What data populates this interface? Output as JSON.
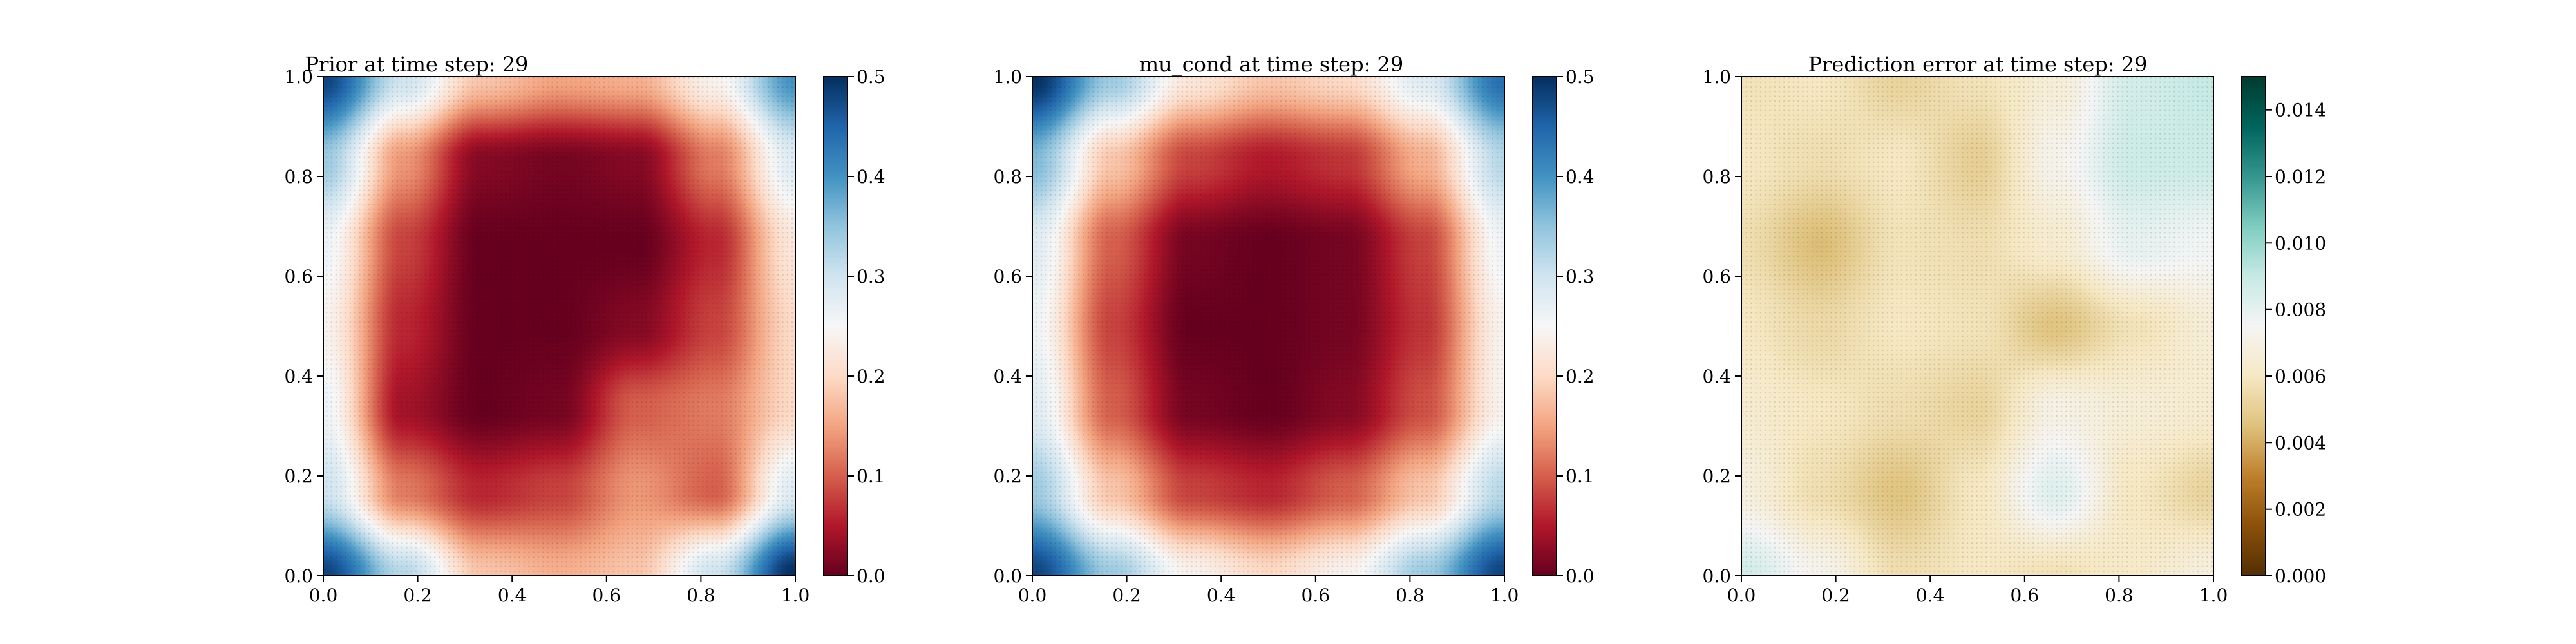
{
  "figure": {
    "background": "#ffffff"
  },
  "chart_data": [
    {
      "type": "heatmap",
      "title": "Prior at time step: 29",
      "xlabel": "",
      "ylabel": "",
      "xlim": [
        0.0,
        1.0
      ],
      "ylim": [
        0.0,
        1.0
      ],
      "xticks": [
        "0.0",
        "0.2",
        "0.4",
        "0.6",
        "0.8",
        "1.0"
      ],
      "yticks": [
        "0.0",
        "0.2",
        "0.4",
        "0.6",
        "0.8",
        "1.0"
      ],
      "colormap": "RdBu",
      "colormap_stops": [
        "#67001f",
        "#b2182b",
        "#d6604d",
        "#f4a582",
        "#fddbc7",
        "#f7f7f7",
        "#d1e5f0",
        "#92c5de",
        "#4393c3",
        "#2166ac",
        "#053061"
      ],
      "value_range": [
        0.0,
        0.5
      ],
      "colorbar_ticks": [
        "0.0",
        "0.1",
        "0.2",
        "0.3",
        "0.4",
        "0.5"
      ],
      "field": {
        "description_values": "approximate scalar field on a 7x7 grid of (x,y) from 0 to 1, row 0 = y=1.0",
        "grid": [
          [
            0.48,
            0.3,
            0.18,
            0.15,
            0.16,
            0.24,
            0.4
          ],
          [
            0.34,
            0.14,
            0.02,
            0.01,
            0.02,
            0.12,
            0.28
          ],
          [
            0.26,
            0.08,
            0.0,
            0.0,
            0.0,
            0.06,
            0.22
          ],
          [
            0.24,
            0.06,
            0.0,
            0.0,
            0.02,
            0.08,
            0.2
          ],
          [
            0.26,
            0.04,
            0.0,
            0.01,
            0.1,
            0.12,
            0.2
          ],
          [
            0.3,
            0.12,
            0.06,
            0.08,
            0.14,
            0.1,
            0.28
          ],
          [
            0.48,
            0.32,
            0.18,
            0.16,
            0.18,
            0.3,
            0.5
          ]
        ]
      }
    },
    {
      "type": "heatmap",
      "title": "mu_cond at time step: 29",
      "xlabel": "",
      "ylabel": "",
      "xlim": [
        0.0,
        1.0
      ],
      "ylim": [
        0.0,
        1.0
      ],
      "xticks": [
        "0.0",
        "0.2",
        "0.4",
        "0.6",
        "0.8",
        "1.0"
      ],
      "yticks": [
        "0.0",
        "0.2",
        "0.4",
        "0.6",
        "0.8",
        "1.0"
      ],
      "colormap": "RdBu",
      "colormap_stops": [
        "#67001f",
        "#b2182b",
        "#d6604d",
        "#f4a582",
        "#fddbc7",
        "#f7f7f7",
        "#d1e5f0",
        "#92c5de",
        "#4393c3",
        "#2166ac",
        "#053061"
      ],
      "value_range": [
        0.0,
        0.5
      ],
      "colorbar_ticks": [
        "0.0",
        "0.1",
        "0.2",
        "0.3",
        "0.4",
        "0.5"
      ],
      "field": {
        "description_values": "approximate scalar field on a 7x7 grid of (x,y) from 0 to 1, row 0 = y=1.0",
        "grid": [
          [
            0.5,
            0.34,
            0.22,
            0.18,
            0.2,
            0.28,
            0.44
          ],
          [
            0.36,
            0.18,
            0.08,
            0.05,
            0.07,
            0.16,
            0.32
          ],
          [
            0.28,
            0.1,
            0.01,
            0.0,
            0.01,
            0.08,
            0.26
          ],
          [
            0.26,
            0.08,
            0.0,
            0.0,
            0.01,
            0.07,
            0.24
          ],
          [
            0.28,
            0.1,
            0.01,
            0.0,
            0.02,
            0.09,
            0.24
          ],
          [
            0.34,
            0.18,
            0.08,
            0.06,
            0.1,
            0.18,
            0.32
          ],
          [
            0.48,
            0.34,
            0.24,
            0.2,
            0.24,
            0.34,
            0.48
          ]
        ]
      }
    },
    {
      "type": "heatmap",
      "title": "Prediction error at time step: 29",
      "xlabel": "",
      "ylabel": "",
      "xlim": [
        0.0,
        1.0
      ],
      "ylim": [
        0.0,
        1.0
      ],
      "xticks": [
        "0.0",
        "0.2",
        "0.4",
        "0.6",
        "0.8",
        "1.0"
      ],
      "yticks": [
        "0.0",
        "0.2",
        "0.4",
        "0.6",
        "0.8",
        "1.0"
      ],
      "colormap": "BrBG",
      "colormap_stops": [
        "#543005",
        "#8c510a",
        "#bf812d",
        "#dfc27d",
        "#f6e8c3",
        "#f5f5f5",
        "#c7eae5",
        "#80cdc1",
        "#35978f",
        "#01665e",
        "#003c30"
      ],
      "value_range": [
        0.0,
        0.015
      ],
      "colorbar_ticks": [
        "0.000",
        "0.002",
        "0.004",
        "0.006",
        "0.008",
        "0.010",
        "0.012",
        "0.014"
      ],
      "field": {
        "description_values": "approximate scalar field on a 7x7 grid of (x,y) from 0 to 1, row 0 = y=1.0",
        "grid": [
          [
            0.0058,
            0.006,
            0.0052,
            0.0058,
            0.0066,
            0.0086,
            0.009
          ],
          [
            0.006,
            0.0056,
            0.006,
            0.005,
            0.0072,
            0.0088,
            0.0088
          ],
          [
            0.0056,
            0.0044,
            0.0058,
            0.0056,
            0.0064,
            0.008,
            0.0076
          ],
          [
            0.006,
            0.0054,
            0.006,
            0.0058,
            0.0046,
            0.0058,
            0.0066
          ],
          [
            0.0064,
            0.006,
            0.0056,
            0.0052,
            0.007,
            0.0066,
            0.0064
          ],
          [
            0.0068,
            0.0056,
            0.0046,
            0.006,
            0.0082,
            0.006,
            0.0052
          ],
          [
            0.0086,
            0.0072,
            0.0056,
            0.006,
            0.0058,
            0.0062,
            0.0068
          ]
        ]
      }
    }
  ]
}
